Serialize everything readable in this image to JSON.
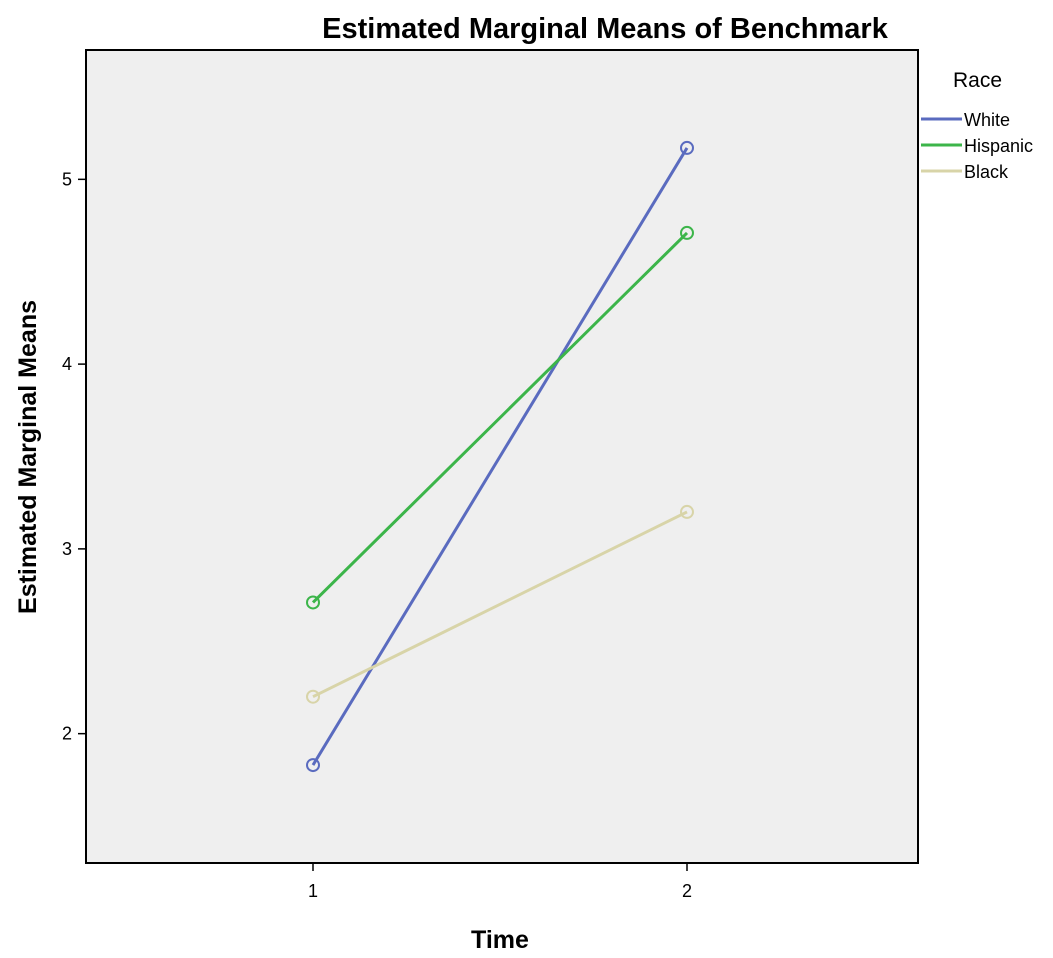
{
  "chart_data": {
    "type": "line",
    "title": "Estimated Marginal Means of Benchmark",
    "xlabel": "Time",
    "ylabel": "Estimated Marginal Means",
    "categories": [
      "1",
      "2"
    ],
    "y_ticks": [
      "2",
      "3",
      "4",
      "5"
    ],
    "ylim": [
      1.3,
      5.7
    ],
    "grid": false,
    "legend": {
      "title": "Race",
      "placement": "right-top"
    },
    "marker": "circle-open",
    "series": [
      {
        "name": "White",
        "color": "#5a6bbf",
        "values": [
          1.83,
          5.17
        ]
      },
      {
        "name": "Hispanic",
        "color": "#3cb54a",
        "values": [
          2.71,
          4.71
        ]
      },
      {
        "name": "Black",
        "color": "#d8d4a8",
        "values": [
          2.2,
          3.2
        ]
      }
    ],
    "plot_background": "#efefef"
  }
}
